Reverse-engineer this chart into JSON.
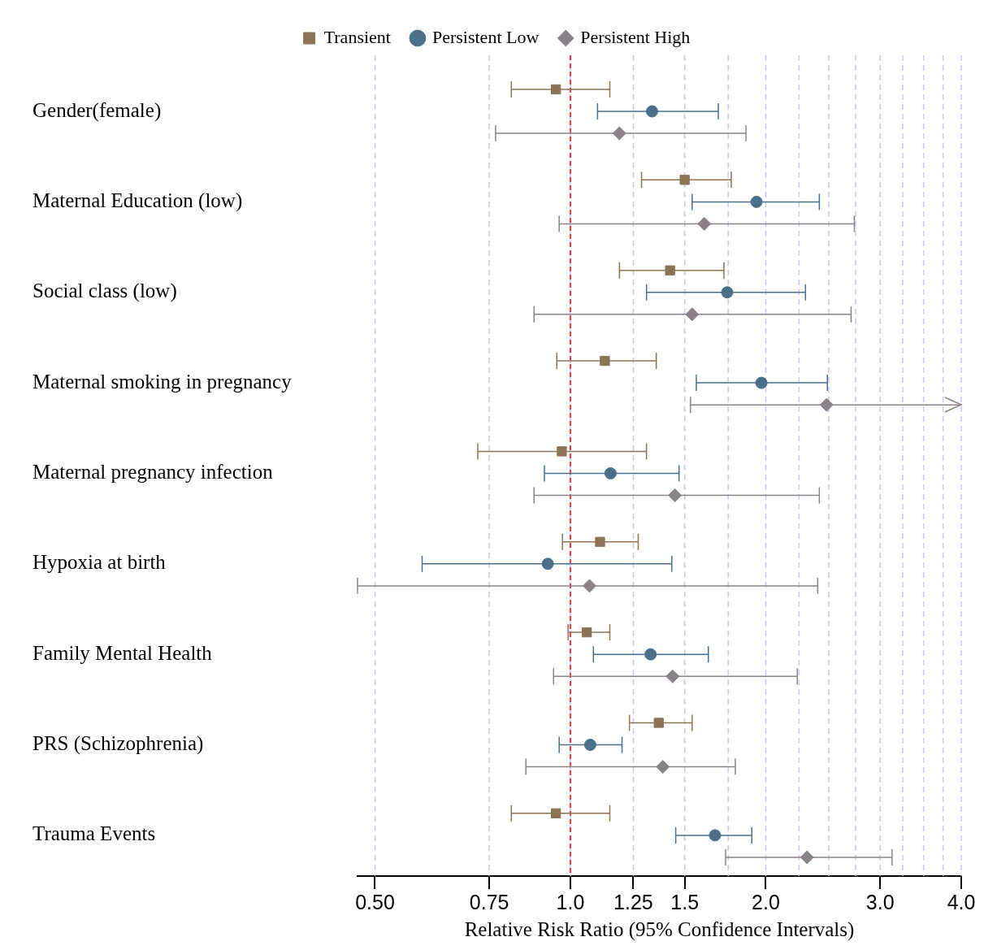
{
  "chart_data": {
    "type": "scatter",
    "orientation": "horizontal",
    "xlabel": "Relative Risk Ratio (95% Confidence Intervals)",
    "log": "x",
    "grid": "x",
    "legend": "top",
    "categories": [
      "Gender(female)",
      "Maternal Education (low)",
      "Social class (low)",
      "Maternal smoking in pregnancy",
      "Maternal pregnancy infection",
      "Hypoxia at birth",
      "Family Mental Health",
      "PRS (Schizophrenia)",
      "Trauma Events"
    ],
    "xlim": [
      0.47,
      4.0
    ],
    "xticks": [
      {
        "value": 0.5,
        "label": "0.50"
      },
      0.75,
      {
        "value": 1,
        "label": "1.0"
      },
      1.25,
      1.5,
      {
        "value": 1.75,
        "label": null
      },
      {
        "value": 2,
        "label": "2.0"
      },
      {
        "value": 2.25,
        "label": null
      },
      {
        "value": 2.5,
        "label": null
      },
      {
        "value": 2.75,
        "label": null
      },
      {
        "value": 3,
        "label": "3.0"
      },
      {
        "value": 3.25,
        "label": null
      },
      {
        "value": 3.5,
        "label": null
      },
      {
        "value": 3.75,
        "label": null
      },
      {
        "value": 4,
        "label": "4.0"
      }
    ],
    "ref_lines": [
      {
        "axis": "x",
        "value": 1,
        "color": "#ff0000",
        "line_style": "dashed"
      }
    ],
    "series": [
      {
        "name": "Transient",
        "color": "#8b7355",
        "marker": "square",
        "values": [
          0.95,
          1.5,
          1.424,
          1.13,
          0.97,
          1.111,
          1.06,
          1.368,
          0.95
        ],
        "errors": [
          [
            0.811,
            1.15
          ],
          [
            1.287,
            1.769
          ],
          [
            1.19,
            1.724
          ],
          [
            0.953,
            1.356
          ],
          [
            0.72,
            1.31
          ],
          [
            0.972,
            1.272
          ],
          [
            0.992,
            1.15
          ],
          [
            1.233,
            1.54
          ],
          [
            0.811,
            1.15
          ]
        ]
      },
      {
        "name": "Persistent Low",
        "color": "#4a6f8a",
        "marker": "circle",
        "values": [
          1.336,
          1.935,
          1.744,
          1.969,
          1.153,
          0.923,
          1.329,
          1.073,
          1.67
        ],
        "errors": [
          [
            1.101,
            1.69
          ],
          [
            1.54,
            2.418
          ],
          [
            1.31,
            2.302
          ],
          [
            1.563,
            2.488
          ],
          [
            0.912,
            1.47
          ],
          [
            0.591,
            1.433
          ],
          [
            1.085,
            1.631
          ],
          [
            0.961,
            1.201
          ],
          [
            1.453,
            1.903
          ]
        ]
      },
      {
        "name": "Persistent High",
        "color": "#8a8288",
        "marker": "diamond",
        "values": [
          1.19,
          1.608,
          1.54,
          2.481,
          1.449,
          1.07,
          1.437,
          1.388,
          2.315
        ],
        "errors": [
          [
            0.767,
            1.864
          ],
          [
            0.961,
            2.738
          ],
          [
            0.879,
            2.707
          ],
          [
            1.531,
            4.0
          ],
          [
            0.879,
            2.418
          ],
          [
            0.47,
            2.404
          ],
          [
            0.942,
            2.236
          ],
          [
            0.854,
            1.795
          ],
          [
            1.734,
            3.129
          ]
        ]
      }
    ]
  }
}
